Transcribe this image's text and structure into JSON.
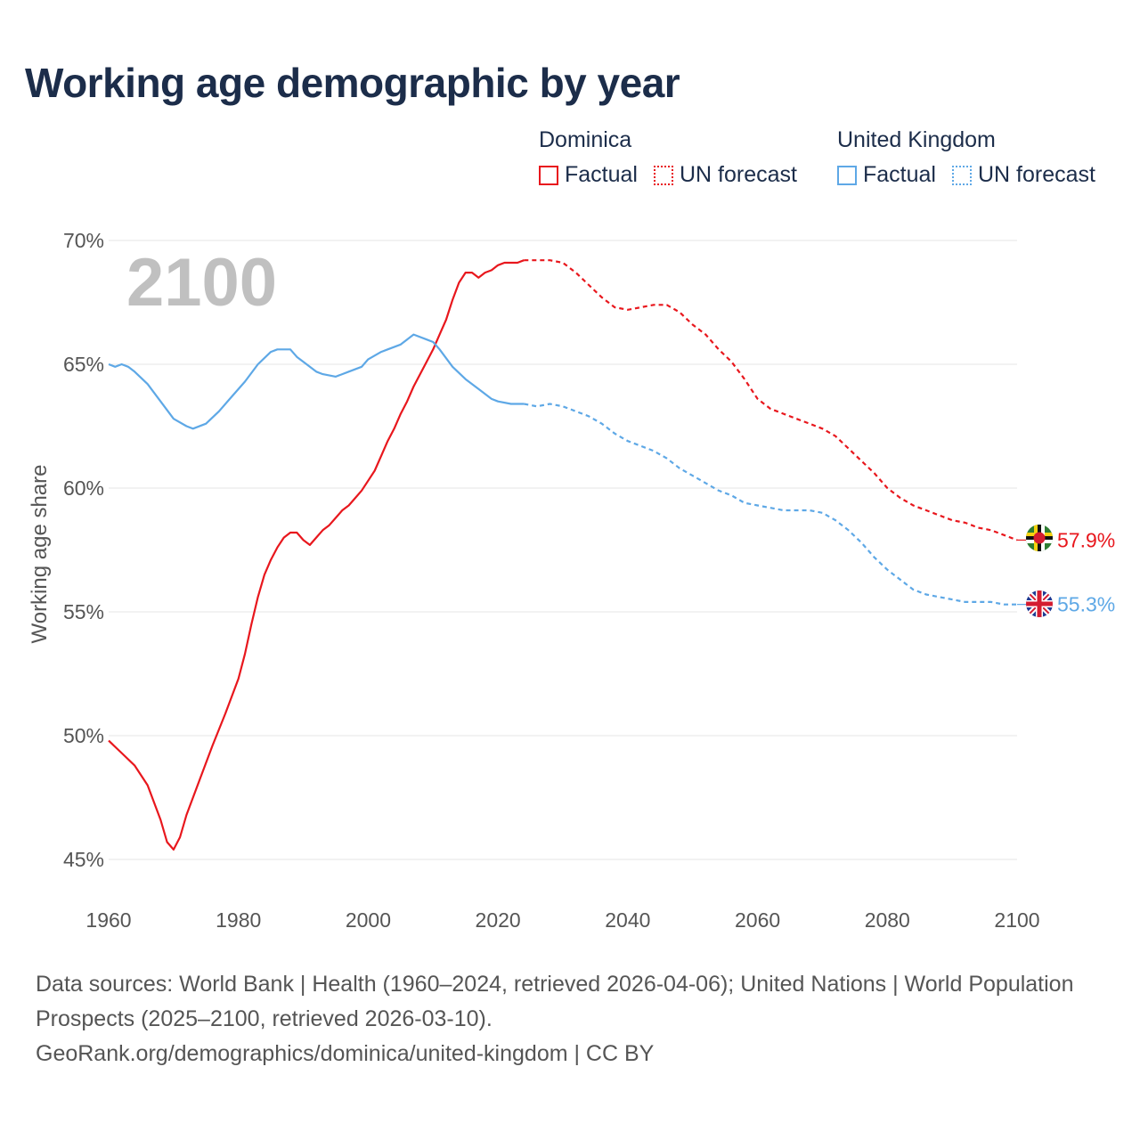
{
  "title": "Working age demographic by year",
  "year_watermark": "2100",
  "legend": {
    "groups": [
      {
        "name": "Dominica",
        "color": "#e8171d",
        "factual_label": "Factual",
        "forecast_label": "UN forecast"
      },
      {
        "name": "United Kingdom",
        "color": "#5ea8e6",
        "factual_label": "Factual",
        "forecast_label": "UN forecast"
      }
    ]
  },
  "footer": {
    "sources": "Data sources: World Bank | Health (1960–2024, retrieved 2026-04-06); United Nations | World Population Prospects (2025–2100, retrieved 2026-03-10).",
    "url": "GeoRank.org/demographics/dominica/united-kingdom | CC BY"
  },
  "chart_data": {
    "type": "line",
    "title": "Working age demographic by year",
    "xlabel": "",
    "ylabel": "Working age share",
    "xlim": [
      1960,
      2100
    ],
    "ylim": [
      45,
      70
    ],
    "x_ticks": [
      1960,
      1980,
      2000,
      2020,
      2040,
      2060,
      2080,
      2100
    ],
    "y_ticks": [
      45,
      50,
      55,
      60,
      65,
      70
    ],
    "y_tick_labels": [
      "45%",
      "50%",
      "55%",
      "60%",
      "65%",
      "70%"
    ],
    "x_tick_labels": [
      "1960",
      "1980",
      "2000",
      "2020",
      "2040",
      "2060",
      "2080",
      "2100"
    ],
    "grid": true,
    "factual_end_year": 2024,
    "series": [
      {
        "name": "Dominica",
        "color": "#e8171d",
        "end_label": "57.9%",
        "points": [
          [
            1960,
            49.8
          ],
          [
            1962,
            49.3
          ],
          [
            1964,
            48.8
          ],
          [
            1966,
            48.0
          ],
          [
            1968,
            46.6
          ],
          [
            1969,
            45.7
          ],
          [
            1970,
            45.4
          ],
          [
            1971,
            45.9
          ],
          [
            1972,
            46.8
          ],
          [
            1974,
            48.2
          ],
          [
            1976,
            49.6
          ],
          [
            1978,
            50.9
          ],
          [
            1980,
            52.3
          ],
          [
            1981,
            53.3
          ],
          [
            1982,
            54.5
          ],
          [
            1983,
            55.6
          ],
          [
            1984,
            56.5
          ],
          [
            1985,
            57.1
          ],
          [
            1986,
            57.6
          ],
          [
            1987,
            58.0
          ],
          [
            1988,
            58.2
          ],
          [
            1989,
            58.2
          ],
          [
            1990,
            57.9
          ],
          [
            1991,
            57.7
          ],
          [
            1992,
            58.0
          ],
          [
            1993,
            58.3
          ],
          [
            1994,
            58.5
          ],
          [
            1995,
            58.8
          ],
          [
            1996,
            59.1
          ],
          [
            1997,
            59.3
          ],
          [
            1998,
            59.6
          ],
          [
            1999,
            59.9
          ],
          [
            2000,
            60.3
          ],
          [
            2001,
            60.7
          ],
          [
            2002,
            61.3
          ],
          [
            2003,
            61.9
          ],
          [
            2004,
            62.4
          ],
          [
            2005,
            63.0
          ],
          [
            2006,
            63.5
          ],
          [
            2007,
            64.1
          ],
          [
            2008,
            64.6
          ],
          [
            2009,
            65.1
          ],
          [
            2010,
            65.6
          ],
          [
            2011,
            66.2
          ],
          [
            2012,
            66.8
          ],
          [
            2013,
            67.6
          ],
          [
            2014,
            68.3
          ],
          [
            2015,
            68.7
          ],
          [
            2016,
            68.7
          ],
          [
            2017,
            68.5
          ],
          [
            2018,
            68.7
          ],
          [
            2019,
            68.8
          ],
          [
            2020,
            69.0
          ],
          [
            2021,
            69.1
          ],
          [
            2022,
            69.1
          ],
          [
            2023,
            69.1
          ],
          [
            2024,
            69.2
          ],
          [
            2026,
            69.2
          ],
          [
            2028,
            69.2
          ],
          [
            2030,
            69.1
          ],
          [
            2032,
            68.7
          ],
          [
            2034,
            68.2
          ],
          [
            2036,
            67.7
          ],
          [
            2038,
            67.3
          ],
          [
            2040,
            67.2
          ],
          [
            2042,
            67.3
          ],
          [
            2044,
            67.4
          ],
          [
            2046,
            67.4
          ],
          [
            2048,
            67.1
          ],
          [
            2050,
            66.6
          ],
          [
            2052,
            66.2
          ],
          [
            2054,
            65.6
          ],
          [
            2056,
            65.1
          ],
          [
            2058,
            64.4
          ],
          [
            2060,
            63.6
          ],
          [
            2062,
            63.2
          ],
          [
            2064,
            63.0
          ],
          [
            2066,
            62.8
          ],
          [
            2068,
            62.6
          ],
          [
            2070,
            62.4
          ],
          [
            2072,
            62.1
          ],
          [
            2074,
            61.6
          ],
          [
            2076,
            61.1
          ],
          [
            2078,
            60.6
          ],
          [
            2080,
            60.0
          ],
          [
            2082,
            59.6
          ],
          [
            2084,
            59.3
          ],
          [
            2086,
            59.1
          ],
          [
            2088,
            58.9
          ],
          [
            2090,
            58.7
          ],
          [
            2092,
            58.6
          ],
          [
            2094,
            58.4
          ],
          [
            2096,
            58.3
          ],
          [
            2098,
            58.1
          ],
          [
            2100,
            57.9
          ]
        ]
      },
      {
        "name": "United Kingdom",
        "color": "#5ea8e6",
        "end_label": "55.3%",
        "points": [
          [
            1960,
            65.0
          ],
          [
            1961,
            64.9
          ],
          [
            1962,
            65.0
          ],
          [
            1963,
            64.9
          ],
          [
            1964,
            64.7
          ],
          [
            1966,
            64.2
          ],
          [
            1968,
            63.5
          ],
          [
            1970,
            62.8
          ],
          [
            1972,
            62.5
          ],
          [
            1973,
            62.4
          ],
          [
            1975,
            62.6
          ],
          [
            1977,
            63.1
          ],
          [
            1979,
            63.7
          ],
          [
            1981,
            64.3
          ],
          [
            1983,
            65.0
          ],
          [
            1985,
            65.5
          ],
          [
            1986,
            65.6
          ],
          [
            1988,
            65.6
          ],
          [
            1989,
            65.3
          ],
          [
            1990,
            65.1
          ],
          [
            1992,
            64.7
          ],
          [
            1993,
            64.6
          ],
          [
            1995,
            64.5
          ],
          [
            1997,
            64.7
          ],
          [
            1999,
            64.9
          ],
          [
            2000,
            65.2
          ],
          [
            2002,
            65.5
          ],
          [
            2003,
            65.6
          ],
          [
            2005,
            65.8
          ],
          [
            2006,
            66.0
          ],
          [
            2007,
            66.2
          ],
          [
            2009,
            66.0
          ],
          [
            2010,
            65.9
          ],
          [
            2011,
            65.6
          ],
          [
            2013,
            64.9
          ],
          [
            2015,
            64.4
          ],
          [
            2017,
            64.0
          ],
          [
            2019,
            63.6
          ],
          [
            2020,
            63.5
          ],
          [
            2022,
            63.4
          ],
          [
            2024,
            63.4
          ],
          [
            2026,
            63.3
          ],
          [
            2028,
            63.4
          ],
          [
            2030,
            63.3
          ],
          [
            2032,
            63.1
          ],
          [
            2034,
            62.9
          ],
          [
            2036,
            62.6
          ],
          [
            2038,
            62.2
          ],
          [
            2040,
            61.9
          ],
          [
            2042,
            61.7
          ],
          [
            2044,
            61.5
          ],
          [
            2046,
            61.2
          ],
          [
            2048,
            60.8
          ],
          [
            2050,
            60.5
          ],
          [
            2052,
            60.2
          ],
          [
            2054,
            59.9
          ],
          [
            2056,
            59.7
          ],
          [
            2058,
            59.4
          ],
          [
            2060,
            59.3
          ],
          [
            2062,
            59.2
          ],
          [
            2064,
            59.1
          ],
          [
            2066,
            59.1
          ],
          [
            2068,
            59.1
          ],
          [
            2070,
            59.0
          ],
          [
            2072,
            58.7
          ],
          [
            2074,
            58.3
          ],
          [
            2076,
            57.8
          ],
          [
            2078,
            57.2
          ],
          [
            2080,
            56.7
          ],
          [
            2082,
            56.3
          ],
          [
            2084,
            55.9
          ],
          [
            2086,
            55.7
          ],
          [
            2088,
            55.6
          ],
          [
            2090,
            55.5
          ],
          [
            2092,
            55.4
          ],
          [
            2094,
            55.4
          ],
          [
            2096,
            55.4
          ],
          [
            2098,
            55.3
          ],
          [
            2100,
            55.3
          ]
        ]
      }
    ]
  }
}
